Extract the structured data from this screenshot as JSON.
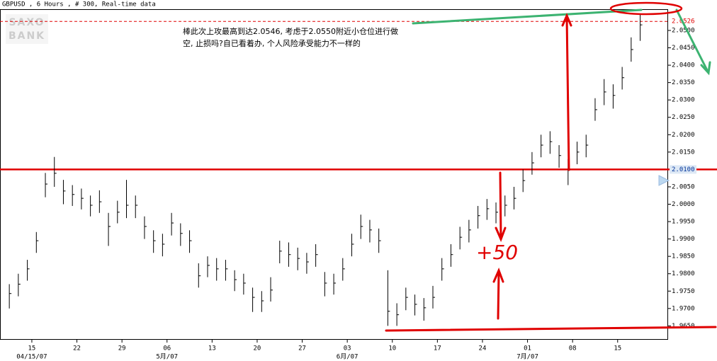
{
  "chart_data": {
    "type": "ohlc",
    "title": "GBPUSD , 6 Hours , # 300, Real-time data",
    "logo": [
      "SAXO",
      "BANK"
    ],
    "color": "#000000",
    "x": [
      0,
      1,
      2,
      3,
      4,
      5,
      6,
      7,
      8,
      9,
      10,
      11,
      12,
      13,
      14,
      15,
      16,
      17,
      18,
      19,
      20,
      21,
      22,
      23,
      24,
      25,
      26,
      27,
      28,
      29,
      30,
      31,
      32,
      33,
      34,
      35,
      36,
      37,
      38,
      39,
      40,
      41,
      42,
      43,
      44,
      45,
      46,
      47,
      48,
      49,
      50,
      51,
      52,
      53,
      54,
      55,
      56,
      57,
      58,
      59,
      60,
      61,
      62,
      63,
      64,
      65,
      66,
      67,
      68,
      69,
      70
    ],
    "high": [
      1.977,
      1.98,
      1.984,
      1.992,
      2.009,
      2.0136,
      2.007,
      2.0055,
      2.0045,
      2.0025,
      2.004,
      1.9975,
      2.001,
      2.007,
      2.0025,
      1.9965,
      1.9925,
      1.9915,
      1.9975,
      1.9945,
      1.9925,
      1.983,
      1.985,
      1.9845,
      1.984,
      1.981,
      1.98,
      1.976,
      1.975,
      1.979,
      1.9895,
      1.989,
      1.9875,
      1.986,
      1.9885,
      1.9805,
      1.98,
      1.9845,
      1.9915,
      1.997,
      1.9955,
      1.993,
      1.981,
      1.9715,
      1.976,
      1.974,
      1.973,
      1.9765,
      1.9845,
      1.9885,
      1.9935,
      1.9955,
      1.9995,
      2.0015,
      2.0005,
      2.0025,
      2.005,
      2.01,
      2.015,
      2.02,
      2.021,
      2.017,
      2.013,
      2.018,
      2.02,
      2.0305,
      2.036,
      2.0345,
      2.0395,
      2.048,
      2.0546
    ],
    "low": [
      1.97,
      1.9735,
      1.978,
      1.986,
      2.002,
      2.005,
      2.0,
      1.9995,
      1.9985,
      1.9965,
      1.9975,
      1.988,
      1.9945,
      1.996,
      1.996,
      1.99,
      1.986,
      1.985,
      1.991,
      1.988,
      1.986,
      1.976,
      1.979,
      1.978,
      1.978,
      1.975,
      1.974,
      1.969,
      1.969,
      1.972,
      1.983,
      1.982,
      1.981,
      1.98,
      1.982,
      1.9735,
      1.974,
      1.978,
      1.985,
      1.99,
      1.989,
      1.986,
      1.965,
      1.965,
      1.9695,
      1.968,
      1.9665,
      1.97,
      1.978,
      1.982,
      1.987,
      1.989,
      1.993,
      1.9955,
      1.9945,
      1.9965,
      1.9985,
      2.0035,
      2.0085,
      2.0135,
      2.0145,
      2.0105,
      2.0055,
      2.0115,
      2.0135,
      2.024,
      2.0285,
      2.0275,
      2.033,
      2.041,
      2.047
    ],
    "close": [
      1.9743,
      1.977,
      1.9814,
      1.9895,
      2.0058,
      2.0089,
      2.0038,
      2.0028,
      2.0017,
      1.9997,
      2.0007,
      1.9936,
      1.9977,
      1.9997,
      1.9997,
      1.9936,
      1.9895,
      1.9885,
      1.9946,
      1.9916,
      1.9895,
      1.9794,
      1.9824,
      1.9814,
      1.9814,
      1.9783,
      1.9773,
      1.9732,
      1.9722,
      1.9753,
      1.9865,
      1.9855,
      1.9844,
      1.9834,
      1.9855,
      1.9773,
      1.9773,
      1.9814,
      1.9885,
      1.9936,
      1.9926,
      1.9895,
      1.9692,
      1.9682,
      1.9732,
      1.9712,
      1.9702,
      1.9732,
      1.9814,
      1.9855,
      1.9905,
      1.9926,
      1.9967,
      1.9987,
      1.9977,
      1.9997,
      2.0017,
      2.0068,
      2.0119,
      2.017,
      2.018,
      2.014,
      2.0099,
      2.015,
      2.017,
      2.0272,
      2.0323,
      2.0313,
      2.0364,
      2.0445,
      2.0516
    ],
    "xlim": [
      -0.64,
      73.1
    ],
    "ylim": [
      1.961,
      2.0557
    ],
    "xticks": [
      {
        "value": 2.5,
        "label": "15"
      },
      {
        "value": 7.5,
        "label": "22"
      },
      {
        "value": 12.5,
        "label": "29"
      },
      {
        "value": 17.5,
        "label": "06"
      },
      {
        "value": 22.5,
        "label": "13"
      },
      {
        "value": 27.5,
        "label": "20"
      },
      {
        "value": 32.5,
        "label": "27"
      },
      {
        "value": 37.5,
        "label": "03"
      },
      {
        "value": 42.5,
        "label": "10"
      },
      {
        "value": 47.5,
        "label": "17"
      },
      {
        "value": 52.5,
        "label": "24"
      },
      {
        "value": 57.5,
        "label": "01"
      },
      {
        "value": 62.5,
        "label": "08"
      },
      {
        "value": 67.5,
        "label": "15"
      }
    ],
    "xticks_month": [
      {
        "value": 2.5,
        "label": "04/15/07"
      },
      {
        "value": 17.5,
        "label": "5月/07"
      },
      {
        "value": 37.5,
        "label": "6月/07"
      },
      {
        "value": 57.5,
        "label": "7月/07"
      }
    ],
    "yticks": [
      {
        "value": 1.965,
        "label": "1.9650"
      },
      {
        "value": 1.97,
        "label": "1.9700"
      },
      {
        "value": 1.975,
        "label": "1.9750"
      },
      {
        "value": 1.98,
        "label": "1.9800"
      },
      {
        "value": 1.985,
        "label": "1.9850"
      },
      {
        "value": 1.99,
        "label": "1.9900"
      },
      {
        "value": 1.995,
        "label": "1.9950"
      },
      {
        "value": 2.0,
        "label": "2.0000"
      },
      {
        "value": 2.005,
        "label": "2.0050"
      },
      {
        "value": 2.015,
        "label": "2.0150"
      },
      {
        "value": 2.02,
        "label": "2.0200"
      },
      {
        "value": 2.025,
        "label": "2.0250"
      },
      {
        "value": 2.03,
        "label": "2.0300"
      },
      {
        "value": 2.035,
        "label": "2.0350"
      },
      {
        "value": 2.04,
        "label": "2.0400"
      },
      {
        "value": 2.045,
        "label": "2.0450"
      },
      {
        "value": 2.05,
        "label": "2.0500"
      }
    ],
    "levels": [
      {
        "value": 2.0526,
        "label": "2.0526",
        "color": "#e00000",
        "style": "dashed"
      },
      {
        "value": 2.01,
        "label": "2.0100",
        "color": "#e00000",
        "style": "solid"
      }
    ],
    "annotation": [
      "棒此次上攻最高到达2.0546, 考虑于2.0550附近小仓位进行做",
      "空, 止损吗?自已看着办, 个人风险承受能力不一样的"
    ],
    "handwritten": "+50"
  }
}
